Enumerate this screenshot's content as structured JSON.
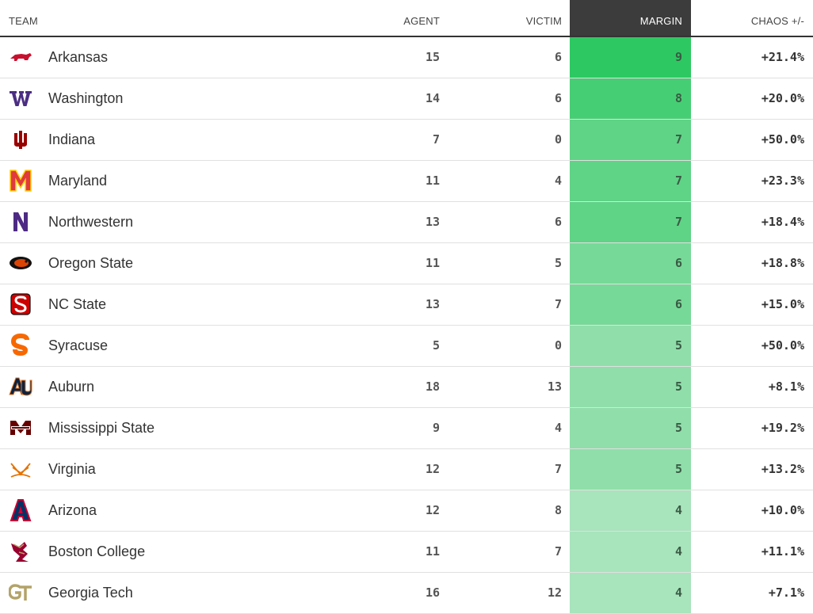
{
  "header": {
    "team": "TEAM",
    "agent": "AGENT",
    "victim": "VICTIM",
    "margin": "MARGIN",
    "chaos": "CHAOS +/-"
  },
  "colors": {
    "margin_max": "#2ec862",
    "margin_min": "#a8e4bc",
    "header_dark": "#3c3c3c"
  },
  "rows": [
    {
      "team": "Arkansas",
      "icon": "arkansas-razorback-icon",
      "agent": "15",
      "victim": "6",
      "margin": "9",
      "chaos": "+21.4%"
    },
    {
      "team": "Washington",
      "icon": "washington-w-icon",
      "agent": "14",
      "victim": "6",
      "margin": "8",
      "chaos": "+20.0%"
    },
    {
      "team": "Indiana",
      "icon": "indiana-iu-icon",
      "agent": "7",
      "victim": "0",
      "margin": "7",
      "chaos": "+50.0%"
    },
    {
      "team": "Maryland",
      "icon": "maryland-m-icon",
      "agent": "11",
      "victim": "4",
      "margin": "7",
      "chaos": "+23.3%"
    },
    {
      "team": "Northwestern",
      "icon": "northwestern-n-icon",
      "agent": "13",
      "victim": "6",
      "margin": "7",
      "chaos": "+18.4%"
    },
    {
      "team": "Oregon State",
      "icon": "oregon-state-beaver-icon",
      "agent": "11",
      "victim": "5",
      "margin": "6",
      "chaos": "+18.8%"
    },
    {
      "team": "NC State",
      "icon": "nc-state-s-icon",
      "agent": "13",
      "victim": "7",
      "margin": "6",
      "chaos": "+15.0%"
    },
    {
      "team": "Syracuse",
      "icon": "syracuse-s-icon",
      "agent": "5",
      "victim": "0",
      "margin": "5",
      "chaos": "+50.0%"
    },
    {
      "team": "Auburn",
      "icon": "auburn-au-icon",
      "agent": "18",
      "victim": "13",
      "margin": "5",
      "chaos": "+8.1%"
    },
    {
      "team": "Mississippi State",
      "icon": "mississippi-state-m-icon",
      "agent": "9",
      "victim": "4",
      "margin": "5",
      "chaos": "+19.2%"
    },
    {
      "team": "Virginia",
      "icon": "virginia-sabres-icon",
      "agent": "12",
      "victim": "7",
      "margin": "5",
      "chaos": "+13.2%"
    },
    {
      "team": "Arizona",
      "icon": "arizona-a-icon",
      "agent": "12",
      "victim": "8",
      "margin": "4",
      "chaos": "+10.0%"
    },
    {
      "team": "Boston College",
      "icon": "boston-college-eagle-icon",
      "agent": "11",
      "victim": "7",
      "margin": "4",
      "chaos": "+11.1%"
    },
    {
      "team": "Georgia Tech",
      "icon": "georgia-tech-gt-icon",
      "agent": "16",
      "victim": "12",
      "margin": "4",
      "chaos": "+7.1%"
    }
  ]
}
